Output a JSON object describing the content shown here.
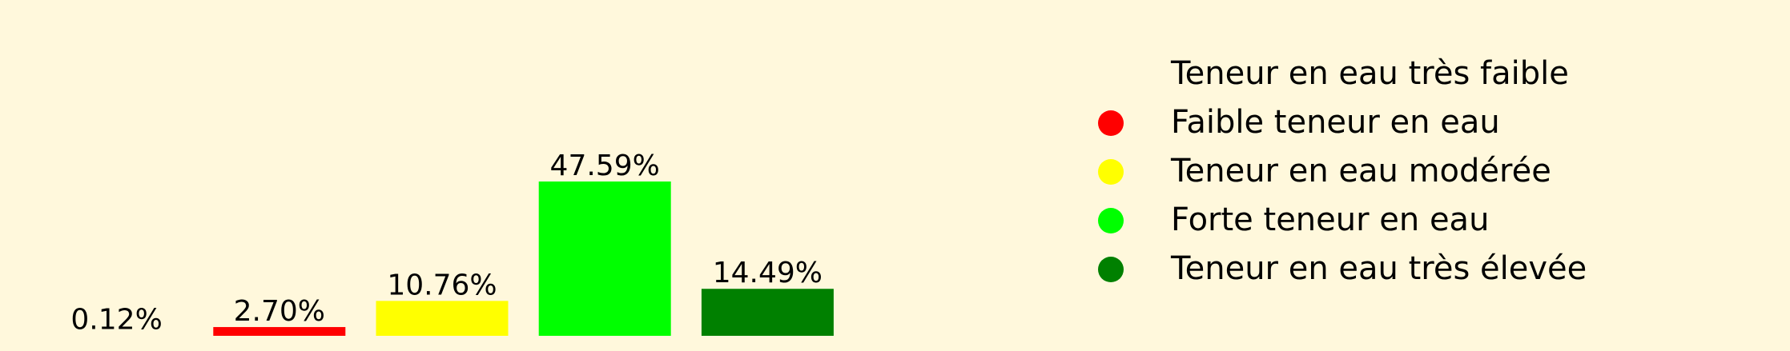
{
  "chart_data": {
    "type": "bar",
    "categories": [
      "Teneur en eau très faible",
      "Faible teneur en eau",
      "Teneur en eau modérée",
      "Forte teneur en eau",
      "Teneur en eau très élevée"
    ],
    "values": [
      0.12,
      2.7,
      10.76,
      47.59,
      14.49
    ],
    "value_labels": [
      "0.12%",
      "2.70%",
      "10.76%",
      "47.59%",
      "14.49%"
    ],
    "colors": [
      "#fff8dc",
      "#ff0000",
      "#ffff00",
      "#00ff00",
      "#008000"
    ],
    "ylim": [
      0,
      50
    ],
    "title": "",
    "xlabel": "",
    "ylabel": "",
    "grid": false,
    "axes_visible": false,
    "legend_position": "right"
  },
  "background_color": "#fff8dc"
}
